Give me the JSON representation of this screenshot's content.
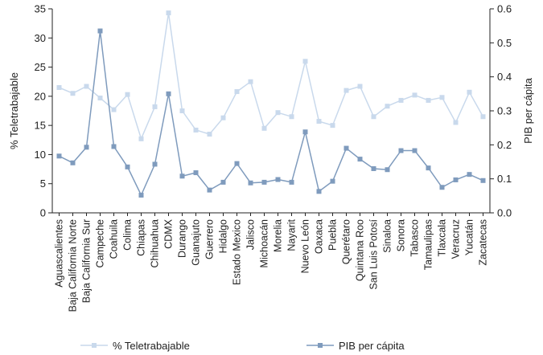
{
  "chart_data": {
    "type": "line",
    "categories": [
      "Aguascalientes",
      "Baja California Norte",
      "Baja California Sur",
      "Campeche",
      "Coahuila",
      "Colima",
      "Chiapas",
      "Chihuahua",
      "CDMX",
      "Durango",
      "Guanajuto",
      "Guerrero",
      "Hidalgo",
      "Estado Mexico",
      "Jalisco",
      "Michoacán",
      "Morelia",
      "Nayarit",
      "Nuevo León",
      "Oaxaca",
      "Puebla",
      "Querétaro",
      "Quintana Roo",
      "San Luis Potosí",
      "Sinaloa",
      "Sonora",
      "Tabasco",
      "Tamaulipas",
      "Tlaxcala",
      "Veracruz",
      "Yucatán",
      "Zacatecas"
    ],
    "series": [
      {
        "name": "% Teletrabajable",
        "axis": "left",
        "color": "#c9d9ec",
        "values": [
          21.5,
          20.5,
          21.7,
          19.7,
          17.7,
          20.3,
          12.7,
          18.2,
          34.3,
          17.5,
          14.2,
          13.5,
          16.3,
          20.8,
          22.5,
          14.5,
          17.2,
          16.5,
          26.0,
          15.7,
          15.0,
          21.0,
          21.7,
          16.5,
          18.3,
          19.3,
          20.2,
          19.3,
          19.8,
          15.5,
          20.7,
          16.5
        ]
      },
      {
        "name": "PIB per cápita",
        "axis": "right",
        "color": "#7f9bbd",
        "values": [
          0.167,
          0.147,
          0.193,
          0.535,
          0.195,
          0.135,
          0.052,
          0.143,
          0.35,
          0.108,
          0.118,
          0.067,
          0.09,
          0.145,
          0.088,
          0.09,
          0.098,
          0.09,
          0.238,
          0.063,
          0.093,
          0.19,
          0.158,
          0.13,
          0.127,
          0.183,
          0.183,
          0.132,
          0.075,
          0.097,
          0.113,
          0.095
        ]
      }
    ],
    "y_left": {
      "label": "% Teletrabajable",
      "ylim": [
        0,
        35
      ],
      "ticks": [
        "0",
        "5",
        "10",
        "15",
        "20",
        "25",
        "30",
        "35"
      ]
    },
    "y_right": {
      "label": "PIB per cápita",
      "ylim": [
        0,
        0.6
      ],
      "ticks": [
        "0.0",
        "0.1",
        "0.2",
        "0.3",
        "0.4",
        "0.5",
        "0.6"
      ]
    },
    "grid": false,
    "legend_position": "bottom"
  }
}
